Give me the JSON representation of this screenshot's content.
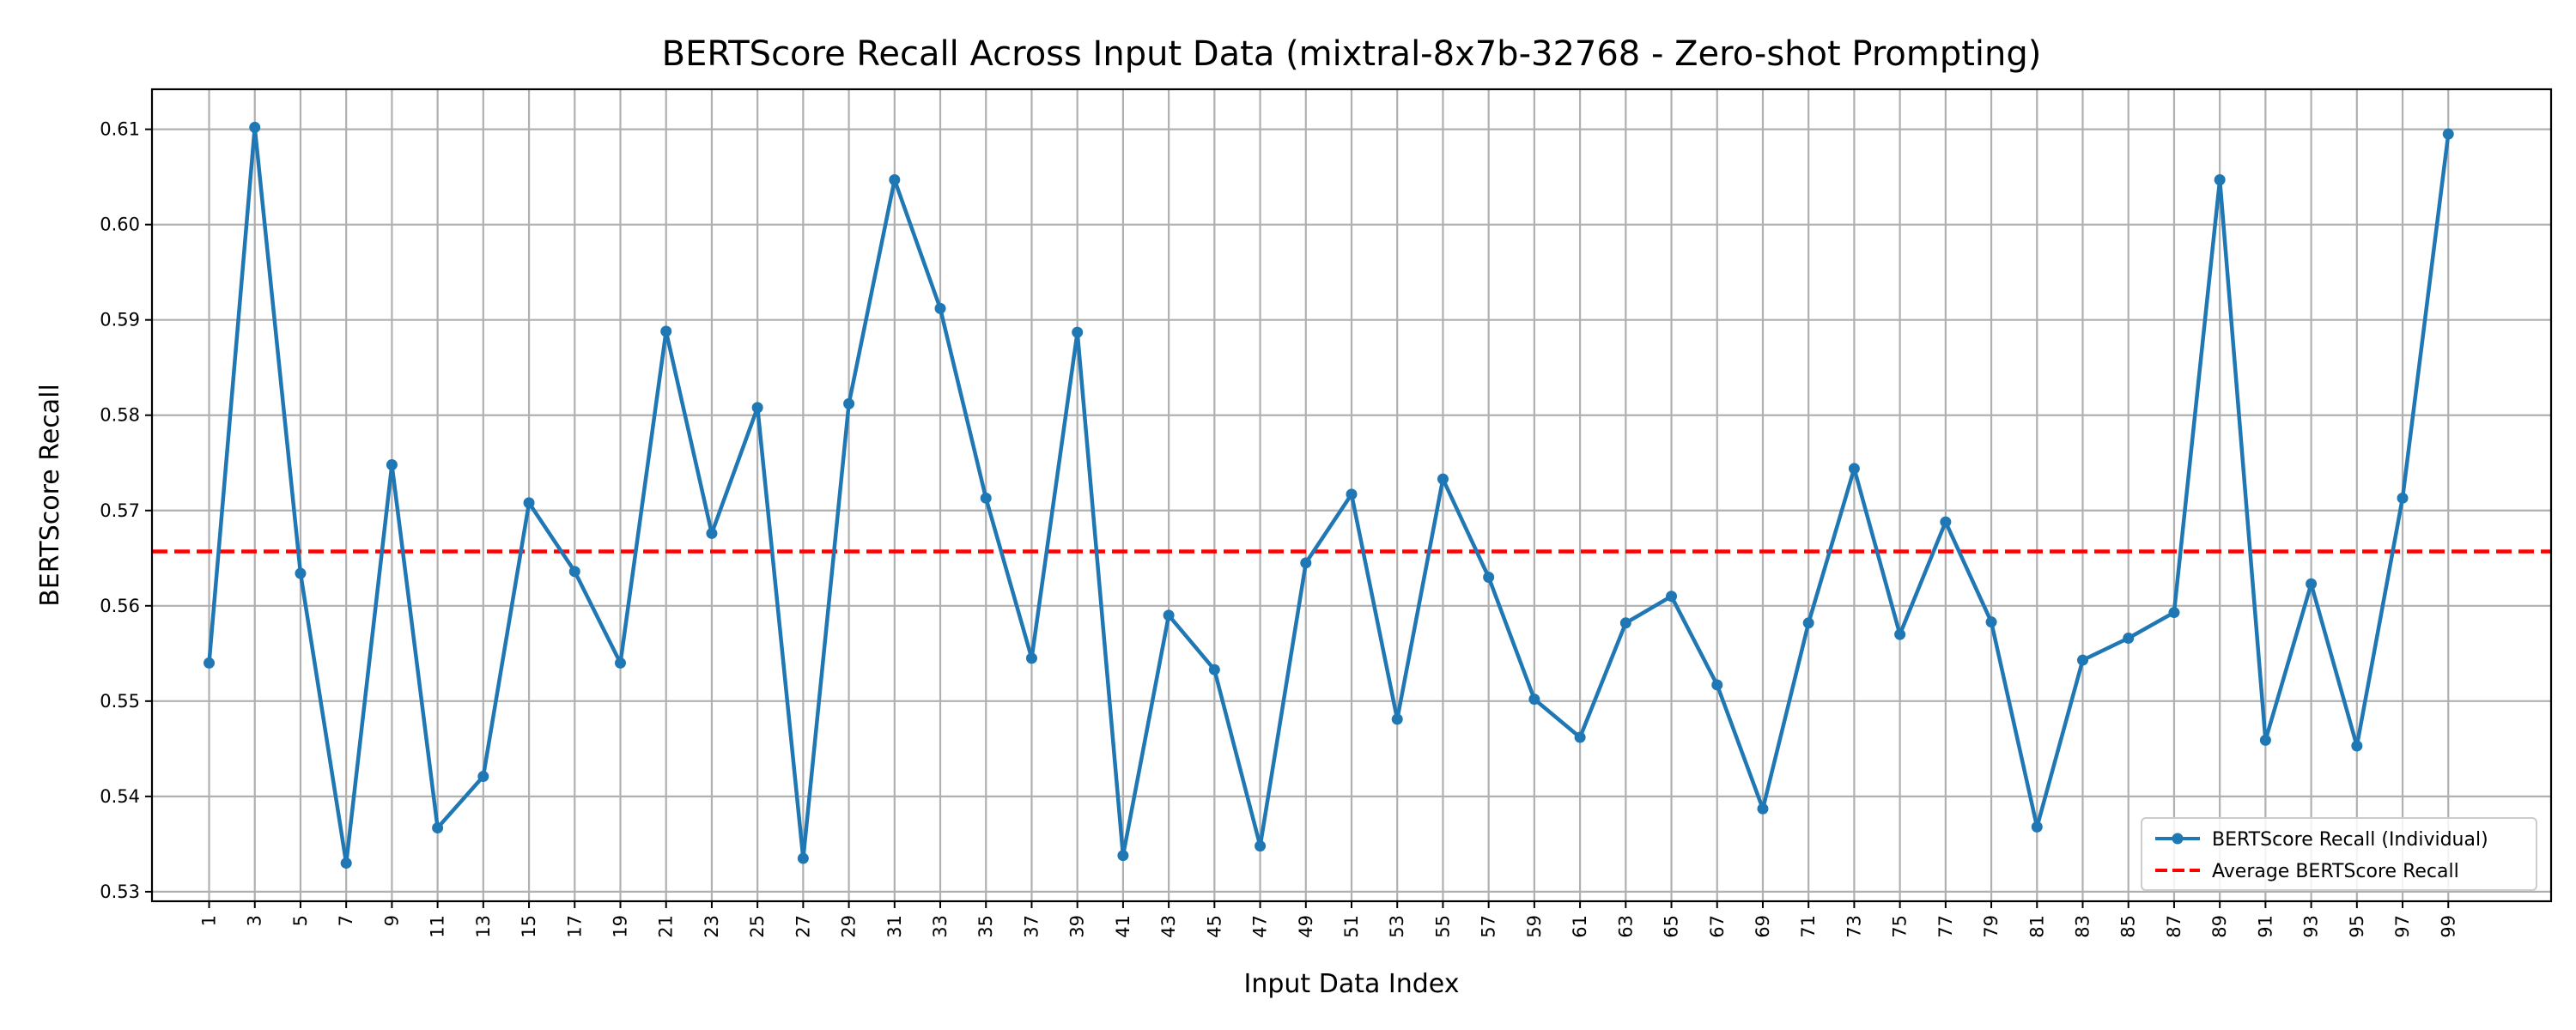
{
  "chart_data": {
    "type": "line",
    "title": "BERTScore Recall Across Input Data (mixtral-8x7b-32768 - Zero-shot Prompting)",
    "xlabel": "Input Data Index",
    "ylabel": "BERTScore Recall",
    "x": [
      1,
      3,
      5,
      7,
      9,
      11,
      13,
      15,
      17,
      19,
      21,
      23,
      25,
      27,
      29,
      31,
      33,
      35,
      37,
      39,
      41,
      43,
      45,
      47,
      49,
      51,
      53,
      55,
      57,
      59,
      61,
      63,
      65,
      67,
      69,
      71,
      73,
      75,
      77,
      79,
      81,
      83,
      85,
      87,
      89,
      91,
      93,
      95,
      97,
      99
    ],
    "x_ticks": [
      "1",
      "3",
      "5",
      "7",
      "9",
      "11",
      "13",
      "15",
      "17",
      "19",
      "21",
      "23",
      "25",
      "27",
      "29",
      "31",
      "33",
      "35",
      "37",
      "39",
      "41",
      "43",
      "45",
      "47",
      "49",
      "51",
      "53",
      "55",
      "57",
      "59",
      "61",
      "63",
      "65",
      "67",
      "69",
      "71",
      "73",
      "75",
      "77",
      "79",
      "81",
      "83",
      "85",
      "87",
      "89",
      "91",
      "93",
      "95",
      "97",
      "99"
    ],
    "xlim": [
      -1.5,
      103.5
    ],
    "ylim": [
      0.529,
      0.6142
    ],
    "y_ticks": [
      "0.53",
      "0.54",
      "0.55",
      "0.56",
      "0.57",
      "0.58",
      "0.59",
      "0.60",
      "0.61"
    ],
    "y_tick_values": [
      0.53,
      0.54,
      0.55,
      0.56,
      0.57,
      0.58,
      0.59,
      0.6,
      0.61
    ],
    "grid": true,
    "legend_position": "lower-right",
    "series": [
      {
        "name": "BERTScore Recall (Individual)",
        "color": "#1f77b4",
        "marker": "circle",
        "values": [
          0.554,
          0.6102,
          0.5634,
          0.533,
          0.5748,
          0.5367,
          0.5421,
          0.5708,
          0.5636,
          0.554,
          0.5888,
          0.5676,
          0.5808,
          0.5335,
          0.5812,
          0.6047,
          0.5912,
          0.5713,
          0.5545,
          0.5887,
          0.5338,
          0.559,
          0.5533,
          0.5348,
          0.5645,
          0.5717,
          0.5481,
          0.5733,
          0.563,
          0.5502,
          0.5462,
          0.5582,
          0.561,
          0.5517,
          0.5387,
          0.5582,
          0.5744,
          0.557,
          0.5688,
          0.5583,
          0.5368,
          0.5543,
          0.5566,
          0.5593,
          0.6047,
          0.5459,
          0.5623,
          0.5453,
          0.5713,
          0.6095
        ]
      }
    ],
    "reference_line": {
      "name": "Average BERTScore Recall",
      "color": "#ff0000",
      "style": "dashed",
      "value": 0.5657
    }
  }
}
